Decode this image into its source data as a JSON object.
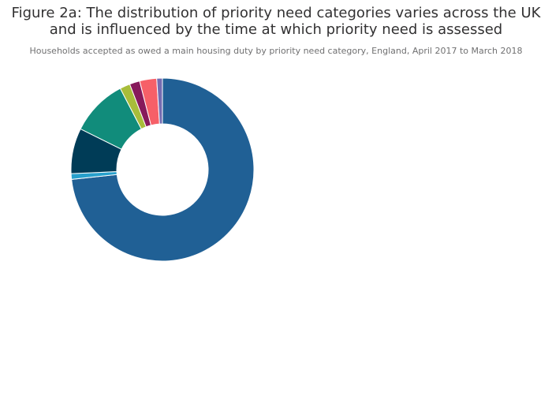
{
  "chart_data": {
    "type": "pie",
    "hole": 0.5,
    "title_line1": "Figure 2a: The distribution of priority need categories varies across the UK",
    "title_line2": "and is influenced by the time at which priority need is assessed",
    "subtitle": "Households accepted as owed a main housing duty by priority need category, England, April 2017 to March 2018",
    "legend": "none",
    "slices": [
      {
        "value": 73.0,
        "color": "#206095"
      },
      {
        "value": 1.0,
        "color": "#27a0cc"
      },
      {
        "value": 8.0,
        "color": "#003c57"
      },
      {
        "value": 10.0,
        "color": "#118c7b"
      },
      {
        "value": 1.8,
        "color": "#a8bd3a"
      },
      {
        "value": 1.8,
        "color": "#871a5b"
      },
      {
        "value": 3.0,
        "color": "#f66068"
      },
      {
        "value": 1.0,
        "color": "#746cb1"
      }
    ]
  }
}
